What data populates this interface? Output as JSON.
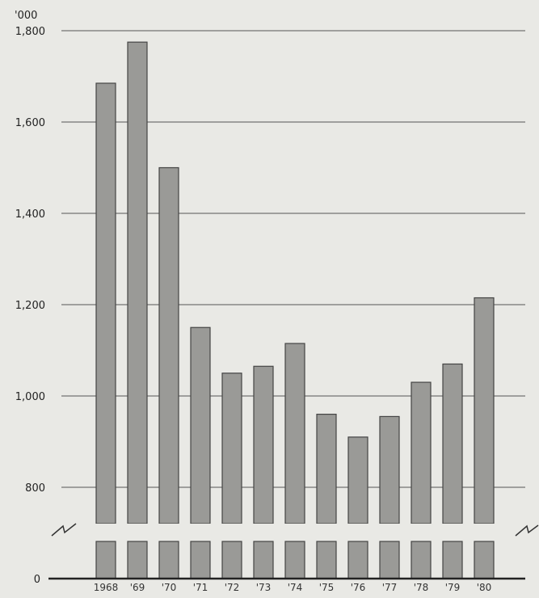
{
  "chart_data": {
    "type": "bar",
    "title": "",
    "xlabel": "",
    "ylabel": "",
    "unit_label": "'000",
    "categories": [
      "1968",
      "'69",
      "'70",
      "'71",
      "'72",
      "'73",
      "'74",
      "'75",
      "'76",
      "'77",
      "'78",
      "'79",
      "'80"
    ],
    "values": [
      1685,
      1775,
      1500,
      1150,
      1050,
      1065,
      1115,
      960,
      910,
      955,
      1030,
      1070,
      1215
    ],
    "ylim": [
      0,
      1800
    ],
    "axis_break": {
      "from": 0,
      "to": 720
    },
    "yticks": [
      {
        "value": 1800,
        "label": "1,800"
      },
      {
        "value": 1600,
        "label": "1,600"
      },
      {
        "value": 1400,
        "label": "1,400"
      },
      {
        "value": 1200,
        "label": "1,200"
      },
      {
        "value": 1000,
        "label": "1,000"
      },
      {
        "value": 800,
        "label": "800"
      },
      {
        "value": 0,
        "label": "0"
      }
    ],
    "grid": true,
    "legend": "none",
    "colors": {
      "bar": "#9a9a97",
      "bar_edge": "#444444",
      "grid": "#555555",
      "background": "#e9e9e5"
    }
  }
}
